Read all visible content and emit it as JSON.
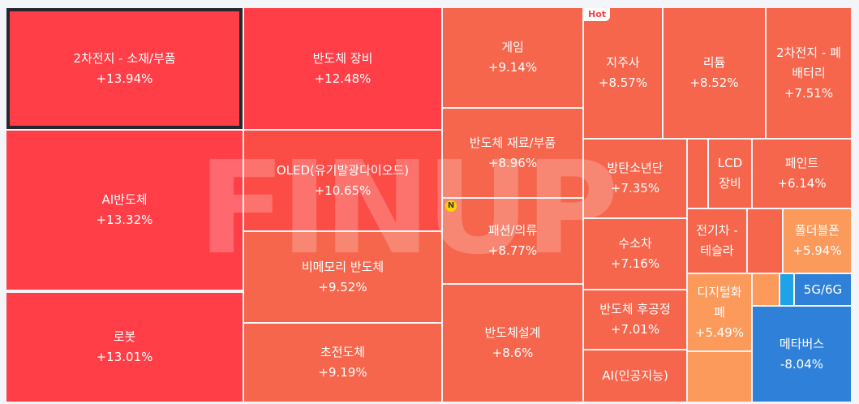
{
  "treemap": {
    "watermark": "FINUP",
    "badges": {
      "hot": "Hot",
      "new": "N"
    },
    "tiles": [
      {
        "name": "2차전지 - 소재/부품",
        "change": "+13.94%"
      },
      {
        "name": "AI반도체",
        "change": "+13.32%"
      },
      {
        "name": "로봇",
        "change": "+13.01%"
      },
      {
        "name": "반도체 장비",
        "change": "+12.48%"
      },
      {
        "name": "OLED(유기발광다이오드)",
        "change": "+10.65%"
      },
      {
        "name": "비메모리 반도체",
        "change": "+9.52%"
      },
      {
        "name": "초전도체",
        "change": "+9.19%"
      },
      {
        "name": "게임",
        "change": "+9.14%"
      },
      {
        "name": "반도체 재료/부품",
        "change": "+8.96%"
      },
      {
        "name": "패션/의류",
        "change": "+8.77%"
      },
      {
        "name": "반도체설계",
        "change": "+8.6%"
      },
      {
        "name": "지주사",
        "change": "+8.57%"
      },
      {
        "name": "리튬",
        "change": "+8.52%"
      },
      {
        "name": "2차전지 - 폐\n배터리",
        "change": "+7.51%"
      },
      {
        "name": "방탄소년단",
        "change": "+7.35%"
      },
      {
        "name": "LCD\n장비",
        "change": ""
      },
      {
        "name": "페인트",
        "change": "+6.14%"
      },
      {
        "name": "수소차",
        "change": "+7.16%"
      },
      {
        "name": "전기차 -\n테슬라",
        "change": ""
      },
      {
        "name": "폴더블폰",
        "change": "+5.94%"
      },
      {
        "name": "반도체 후공정",
        "change": "+7.01%"
      },
      {
        "name": "디지털화\n폐",
        "change": "+5.49%"
      },
      {
        "name": "5G/6G",
        "change": ""
      },
      {
        "name": "AI(인공지능)",
        "change": ""
      },
      {
        "name": "메타버스",
        "change": "-8.04%"
      }
    ]
  }
}
